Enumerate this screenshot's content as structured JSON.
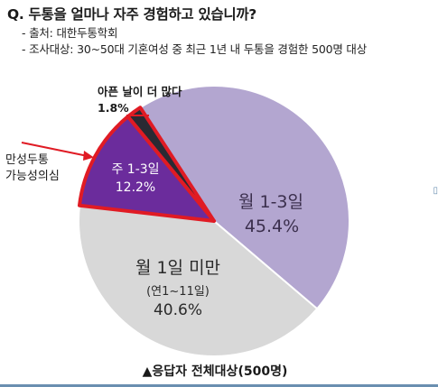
{
  "question": "Q. 두통을 얼마나 자주 경험하고 있습니까?",
  "notes": {
    "source": "- 출처: 대한두통학회",
    "subject": "- 조사대상: 30~50대 기혼여성 중 최근 1년 내 두통을 경험한 500명 대상"
  },
  "callout": {
    "line1": "만성두통",
    "line2": "가능성의심"
  },
  "footer": "▲응답자 전체대상(500명)",
  "colors": {
    "monthly_1_3": "#b3a6d0",
    "under_monthly": "#d8d8d8",
    "weekly_1_3": "#6b2c9c",
    "daily": "#2a2a33",
    "highlight": "#e01b24",
    "border": "#ffffff"
  },
  "chart_data": {
    "type": "pie",
    "title": "",
    "unit": "%",
    "slices": [
      {
        "name": "월 1-3일",
        "sublabel": "",
        "value": 45.4,
        "label": "45.4%",
        "color_key": "monthly_1_3"
      },
      {
        "name": "월 1일 미만",
        "sublabel": "(연1~11일)",
        "value": 40.6,
        "label": "40.6%",
        "color_key": "under_monthly"
      },
      {
        "name": "주 1-3일",
        "sublabel": "",
        "value": 12.2,
        "label": "12.2%",
        "color_key": "weekly_1_3",
        "highlighted": true
      },
      {
        "name": "아픈 날이 더 많다",
        "sublabel": "",
        "value": 1.8,
        "label": "1.8%",
        "color_key": "daily",
        "highlighted": true
      }
    ]
  }
}
